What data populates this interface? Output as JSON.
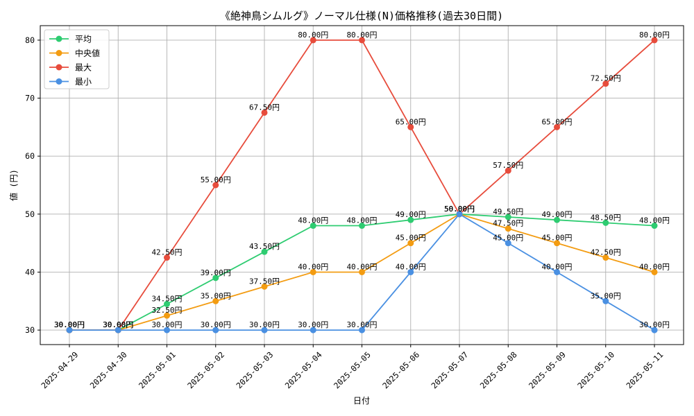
{
  "chart_data": {
    "type": "line",
    "title": "《絶神鳥シムルグ》ノーマル仕様(N)価格推移(過去30日間)",
    "xlabel": "日付",
    "ylabel": "値 (円)",
    "x": [
      "2025-04-29",
      "2025-04-30",
      "2025-05-01",
      "2025-05-02",
      "2025-05-03",
      "2025-05-04",
      "2025-05-05",
      "2025-05-06",
      "2025-05-07",
      "2025-05-08",
      "2025-05-09",
      "2025-05-10",
      "2025-05-11"
    ],
    "ylim": [
      27.5,
      82.5
    ],
    "yticks": [
      30,
      40,
      50,
      60,
      70,
      80
    ],
    "grid": true,
    "legend_position": "top-left",
    "value_suffix": "円",
    "series": [
      {
        "name": "平均",
        "color": "#2ecc71",
        "values": [
          30,
          30,
          34.5,
          39,
          43.5,
          48,
          48,
          49,
          50,
          49.5,
          49,
          48.5,
          48
        ]
      },
      {
        "name": "中央値",
        "color": "#f39c12",
        "values": [
          30,
          30,
          32.5,
          35,
          37.5,
          40,
          40,
          45,
          50,
          47.5,
          45,
          42.5,
          40
        ]
      },
      {
        "name": "最大",
        "color": "#e74c3c",
        "values": [
          30,
          30,
          42.5,
          55,
          67.5,
          80,
          80,
          65,
          50,
          57.5,
          65,
          72.5,
          80
        ]
      },
      {
        "name": "最小",
        "color": "#4a90e2",
        "values": [
          30,
          30,
          30,
          30,
          30,
          30,
          30,
          40,
          50,
          45,
          40,
          35,
          30
        ]
      }
    ]
  }
}
